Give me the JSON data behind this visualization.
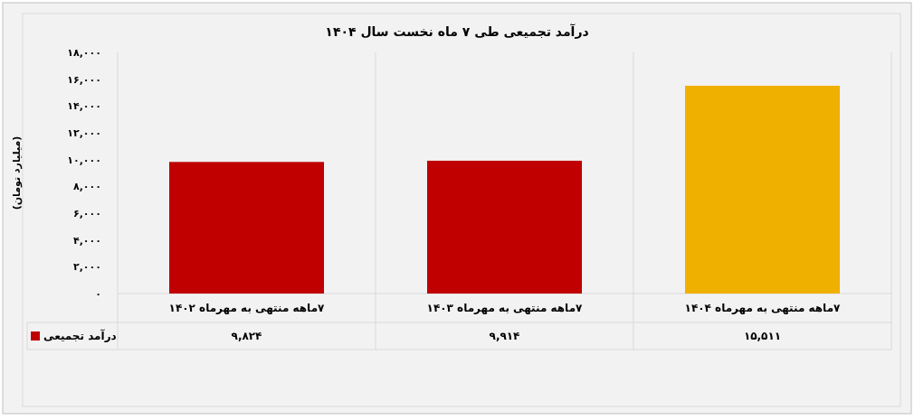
{
  "chart_data": {
    "type": "bar",
    "title": "درآمد تجمیعی طی ۷ ماه نخست سال ۱۴۰۴",
    "ylabel": "(میلیارد تومان)",
    "categories": [
      "۷ماهه منتهی به مهرماه ۱۴۰۲",
      "۷ماهه منتهی به مهرماه ۱۴۰۳",
      "۷ماهه منتهی به مهرماه ۱۴۰۴"
    ],
    "series": [
      {
        "name": "درآمد تجمیعی",
        "color": "#c00000",
        "colors": [
          "#c00000",
          "#c00000",
          "#f0b000"
        ],
        "values": [
          9824,
          9914,
          15511
        ],
        "value_labels": [
          "۹,۸۲۴",
          "۹,۹۱۴",
          "۱۵,۵۱۱"
        ]
      }
    ],
    "ylim": [
      0,
      18000
    ],
    "yticks": [
      {
        "value": 0,
        "label": "۰"
      },
      {
        "value": 2000,
        "label": "۲,۰۰۰"
      },
      {
        "value": 4000,
        "label": "۴,۰۰۰"
      },
      {
        "value": 6000,
        "label": "۶,۰۰۰"
      },
      {
        "value": 8000,
        "label": "۸,۰۰۰"
      },
      {
        "value": 10000,
        "label": "۱۰,۰۰۰"
      },
      {
        "value": 12000,
        "label": "۱۲,۰۰۰"
      },
      {
        "value": 14000,
        "label": "۱۴,۰۰۰"
      },
      {
        "value": 16000,
        "label": "۱۶,۰۰۰"
      },
      {
        "value": 18000,
        "label": "۱۸,۰۰۰"
      }
    ],
    "legend": "bottom left"
  }
}
